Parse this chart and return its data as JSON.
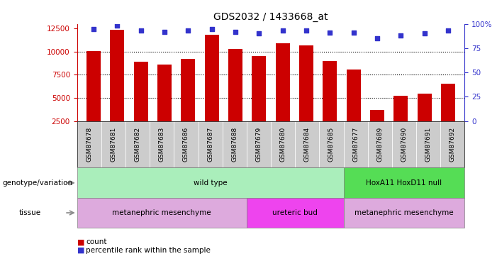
{
  "title": "GDS2032 / 1433668_at",
  "samples": [
    "GSM87678",
    "GSM87681",
    "GSM87682",
    "GSM87683",
    "GSM87686",
    "GSM87687",
    "GSM87688",
    "GSM87679",
    "GSM87680",
    "GSM87684",
    "GSM87685",
    "GSM87677",
    "GSM87689",
    "GSM87690",
    "GSM87691",
    "GSM87692"
  ],
  "counts": [
    10100,
    12400,
    8900,
    8600,
    9200,
    11800,
    10300,
    9500,
    10900,
    10700,
    9000,
    8100,
    3700,
    5200,
    5500,
    6500
  ],
  "percentile": [
    95,
    98,
    93,
    92,
    93,
    95,
    92,
    90,
    93,
    93,
    91,
    91,
    85,
    88,
    90,
    93
  ],
  "bar_color": "#cc0000",
  "dot_color": "#3333cc",
  "ylim_left": [
    2500,
    13000
  ],
  "ylim_right": [
    0,
    100
  ],
  "yticks_left": [
    2500,
    5000,
    7500,
    10000,
    12500
  ],
  "yticks_right": [
    0,
    25,
    50,
    75,
    100
  ],
  "ytick_labels_right": [
    "0",
    "25",
    "50",
    "75",
    "100%"
  ],
  "grid_values": [
    5000,
    7500,
    10000
  ],
  "genotype_groups": [
    {
      "label": "wild type",
      "start": 0,
      "end": 11,
      "color": "#aaeebb"
    },
    {
      "label": "HoxA11 HoxD11 null",
      "start": 11,
      "end": 16,
      "color": "#55dd55"
    }
  ],
  "tissue_groups": [
    {
      "label": "metanephric mesenchyme",
      "start": 0,
      "end": 7,
      "color": "#ddaadd"
    },
    {
      "label": "ureteric bud",
      "start": 7,
      "end": 11,
      "color": "#ee44ee"
    },
    {
      "label": "metanephric mesenchyme",
      "start": 11,
      "end": 16,
      "color": "#ddaadd"
    }
  ],
  "legend_count_color": "#cc0000",
  "legend_pct_color": "#3333cc",
  "left_axis_color": "#cc0000",
  "right_axis_color": "#3333cc",
  "xtick_bg": "#cccccc",
  "label_fontsize": 8,
  "tick_fontsize": 7.5
}
